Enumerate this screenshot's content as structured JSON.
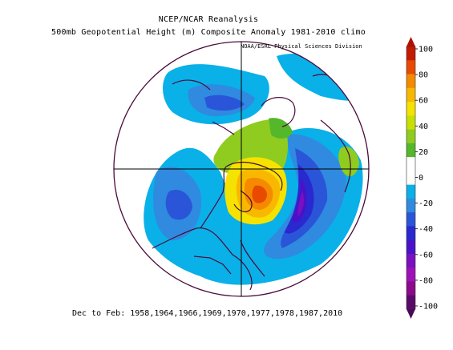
{
  "title_line1": "NCEP/NCAR Reanalysis",
  "title_line2": "500mb Geopotential Height (m) Composite Anomaly 1981-2010 climo",
  "credit": "NOAA/ESRL Physical Sciences Division",
  "footer": "Dec to Feb: 1958,1964,1966,1969,1970,1977,1978,1987,2010",
  "colorbar": {
    "labels": [
      "100",
      "80",
      "60",
      "40",
      "20",
      "0",
      "-20",
      "-40",
      "-60",
      "-80",
      "-100"
    ],
    "colors": [
      "#c41a00",
      "#e84a00",
      "#f58a00",
      "#f9b800",
      "#f5e200",
      "#c8e000",
      "#8fcc1f",
      "#55b72a",
      "#ffffff",
      "#ffffff",
      "#0ab0e8",
      "#2f8ae0",
      "#2a55d8",
      "#2a28cf",
      "#4a12c8",
      "#7a10c0",
      "#a010b8",
      "#8a0a8a",
      "#5a0a6a"
    ]
  },
  "map": {
    "projection": "north-polar-stereographic",
    "line_color": "#4a0a3a"
  }
}
